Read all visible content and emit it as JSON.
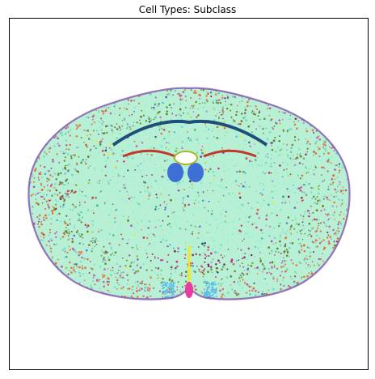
{
  "title": "Cell Types: Subclass",
  "image": {
    "subject": "coronal brain section scatter colored by cell subclass",
    "background": "#ffffff",
    "palette": [
      "#9ff2d0",
      "#72d6c0",
      "#e86a2e",
      "#b35aa8",
      "#6b7f25",
      "#1f4e79",
      "#d4208a",
      "#8a1050",
      "#f2e82a",
      "#f25a25",
      "#3aa4c8",
      "#3d6fd6",
      "#a29bd6",
      "#c0392b",
      "#a8b826",
      "#2fa57a",
      "#c84a9a",
      "#d8c85a",
      "#5cc0e8",
      "#7a4aa8"
    ]
  }
}
